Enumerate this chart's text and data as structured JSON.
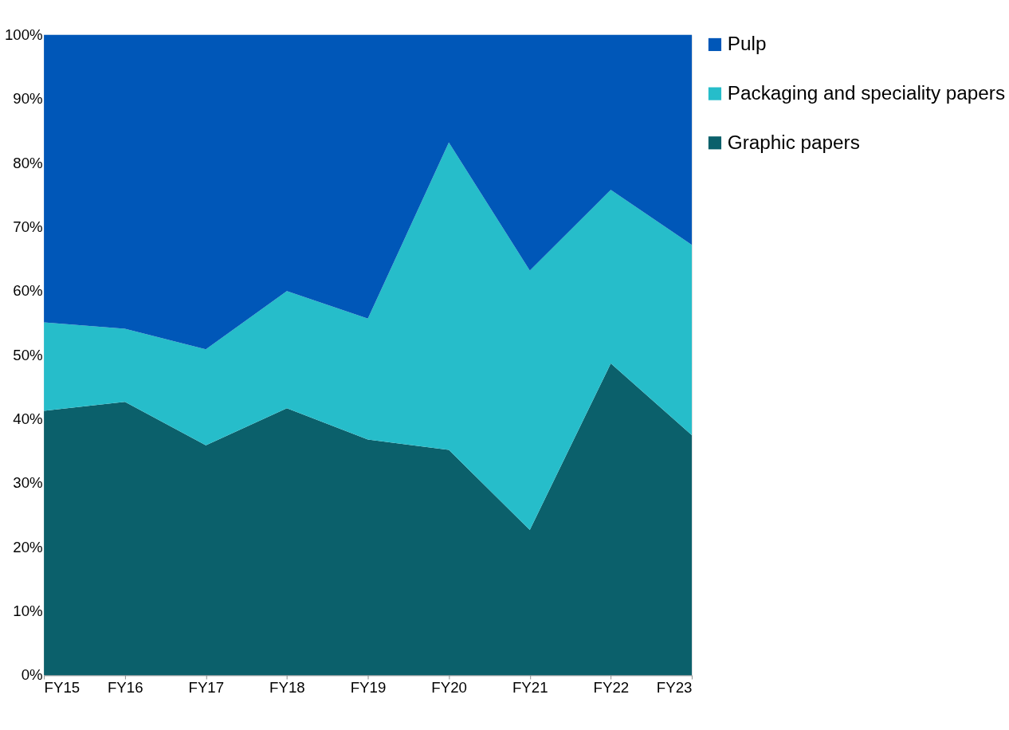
{
  "chart_data": {
    "type": "area",
    "stacked": true,
    "categories": [
      "FY15",
      "FY16",
      "FY17",
      "FY18",
      "FY19",
      "FY20",
      "FY21",
      "FY22",
      "FY23"
    ],
    "series": [
      {
        "name": "Graphic papers",
        "color": "#0b606b",
        "values": [
          41.3,
          42.7,
          35.9,
          41.7,
          36.8,
          35.2,
          22.7,
          48.7,
          37.5
        ]
      },
      {
        "name": "Packaging and speciality papers",
        "color": "#26bdca",
        "values": [
          13.8,
          11.4,
          15.0,
          18.3,
          18.9,
          48.0,
          40.5,
          27.1,
          29.7
        ]
      },
      {
        "name": "Pulp",
        "color": "#0057b8",
        "values": [
          44.9,
          45.9,
          49.1,
          40.0,
          44.3,
          16.8,
          36.8,
          24.2,
          32.8
        ]
      }
    ],
    "ylim": [
      0,
      100
    ],
    "yticks": [
      {
        "value": 0,
        "label": "0%"
      },
      {
        "value": 10,
        "label": "10%"
      },
      {
        "value": 20,
        "label": "20%"
      },
      {
        "value": 30,
        "label": "30%"
      },
      {
        "value": 40,
        "label": "40%"
      },
      {
        "value": 50,
        "label": "50%"
      },
      {
        "value": 60,
        "label": "60%"
      },
      {
        "value": 70,
        "label": "70%"
      },
      {
        "value": 80,
        "label": "80%"
      },
      {
        "value": 90,
        "label": "90%"
      },
      {
        "value": 100,
        "label": "100%"
      }
    ],
    "grid": false,
    "legend": "right"
  }
}
